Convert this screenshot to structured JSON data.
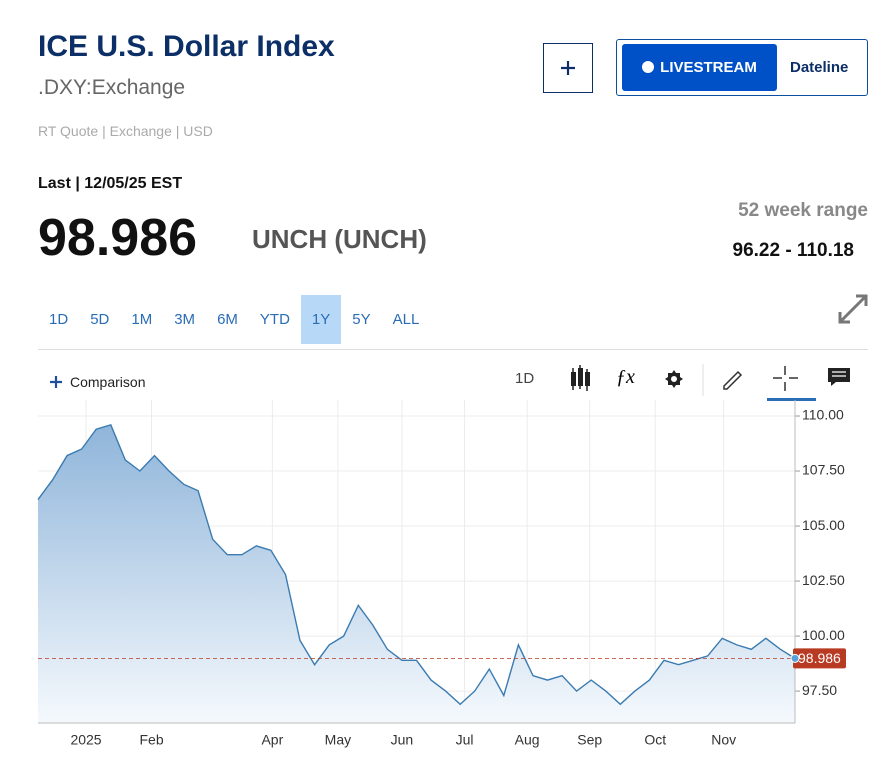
{
  "header": {
    "title": "ICE U.S. Dollar Index",
    "symbol": ".DXY:Exchange",
    "quote_type": "RT Quote | Exchange | USD"
  },
  "buttons": {
    "livestream": "LIVESTREAM",
    "dateline": "Dateline"
  },
  "quote": {
    "last_label": "Last | 12/05/25 EST",
    "last": "98.986",
    "change": "UNCH (UNCH)",
    "range_label": "52 week range",
    "range": "96.22 - 110.18"
  },
  "ranges": {
    "options": [
      "1D",
      "5D",
      "1M",
      "3M",
      "6M",
      "YTD",
      "1Y",
      "5Y",
      "ALL"
    ],
    "selected": "1Y"
  },
  "toolbar": {
    "comparison": "Comparison",
    "interval": "1D"
  },
  "chart_data": {
    "type": "area",
    "color": "#3b7bb0",
    "reference_color": "#b83a22",
    "grid": true,
    "values": [
      106.2,
      107.1,
      108.2,
      108.5,
      109.4,
      109.6,
      108.0,
      107.5,
      108.2,
      107.5,
      106.9,
      106.6,
      104.4,
      103.7,
      103.7,
      104.1,
      103.9,
      102.8,
      99.8,
      98.7,
      99.6,
      100.0,
      101.4,
      100.5,
      99.4,
      98.9,
      98.9,
      98.0,
      97.5,
      96.9,
      97.5,
      98.5,
      97.3,
      99.6,
      98.2,
      98.0,
      98.2,
      97.5,
      98.0,
      97.5,
      96.9,
      97.5,
      98.0,
      98.9,
      98.7,
      98.9,
      99.1,
      99.9,
      99.6,
      99.4,
      99.9,
      99.4,
      98.986
    ],
    "xlim": [
      0,
      52
    ],
    "xticks": [
      {
        "value": 3.3,
        "label": "2025"
      },
      {
        "value": 7.8,
        "label": "Feb"
      },
      {
        "value": 16.1,
        "label": "Apr"
      },
      {
        "value": 20.6,
        "label": "May"
      },
      {
        "value": 25.0,
        "label": "Jun"
      },
      {
        "value": 29.3,
        "label": "Jul"
      },
      {
        "value": 33.6,
        "label": "Aug"
      },
      {
        "value": 37.9,
        "label": "Sep"
      },
      {
        "value": 42.4,
        "label": "Oct"
      },
      {
        "value": 47.1,
        "label": "Nov"
      }
    ],
    "ylim": [
      96.05,
      110.41
    ],
    "yticks": [
      {
        "value": 97.5,
        "label": "97.50"
      },
      {
        "value": 100,
        "label": "100.00"
      },
      {
        "value": 102.5,
        "label": "102.50"
      },
      {
        "value": 105,
        "label": "105.00"
      },
      {
        "value": 107.5,
        "label": "107.50"
      },
      {
        "value": 110,
        "label": "110.00"
      }
    ]
  }
}
